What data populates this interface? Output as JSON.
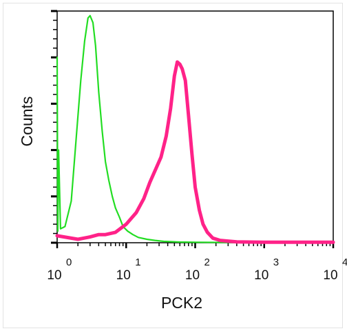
{
  "chart_data": {
    "type": "line",
    "title": "",
    "xlabel": "PCK2",
    "ylabel": "Counts",
    "x_scale": "log",
    "xlim": [
      1,
      10000
    ],
    "ylim": [
      0,
      100
    ],
    "grid": false,
    "legend": "none",
    "x_ticks": [
      {
        "base": "10",
        "exp": "0",
        "value": 1
      },
      {
        "base": "10",
        "exp": "1",
        "value": 10
      },
      {
        "base": "10",
        "exp": "2",
        "value": 100
      },
      {
        "base": "10",
        "exp": "3",
        "value": 1000
      },
      {
        "base": "10",
        "exp": "4",
        "value": 10000
      }
    ],
    "series": [
      {
        "color": "#22dd22",
        "x": [
          1.0,
          1.02,
          1.05,
          1.12,
          1.3,
          1.6,
          1.9,
          2.2,
          2.5,
          2.8,
          3.0,
          3.3,
          3.6,
          4.0,
          4.5,
          5.0,
          5.6,
          6.3,
          7.0,
          8.0,
          9.0,
          10.5,
          12.5,
          15.0,
          20.0,
          26.0,
          35.0,
          60.0,
          100.0,
          400.0,
          10000.0
        ],
        "y": [
          80,
          5,
          40,
          6,
          7,
          18,
          46,
          70,
          87,
          97,
          98,
          95,
          85,
          65,
          48,
          35,
          27,
          20,
          15,
          11,
          7,
          5,
          3.5,
          2.3,
          1.5,
          1,
          0.6,
          0.3,
          0.2,
          0.1,
          0.1
        ]
      },
      {
        "color": "#ff2288",
        "x": [
          1.0,
          2.0,
          3.0,
          4.0,
          5.0,
          7.0,
          10.0,
          14.0,
          18.0,
          22.0,
          27.0,
          32.0,
          38.0,
          44.0,
          50.0,
          55.0,
          60.0,
          65.0,
          72.0,
          80.0,
          90.0,
          100.0,
          115.0,
          130.0,
          150.0,
          180.0,
          230.0,
          400.0,
          1000.0,
          10000.0
        ],
        "y": [
          3,
          1.5,
          2.5,
          3.5,
          3.5,
          4.5,
          8,
          13,
          19,
          26,
          32,
          37,
          46,
          58,
          72,
          78,
          77,
          75,
          70,
          55,
          38,
          24,
          14,
          8,
          4.5,
          2,
          1,
          0.4,
          0.2,
          0.2
        ]
      }
    ]
  }
}
